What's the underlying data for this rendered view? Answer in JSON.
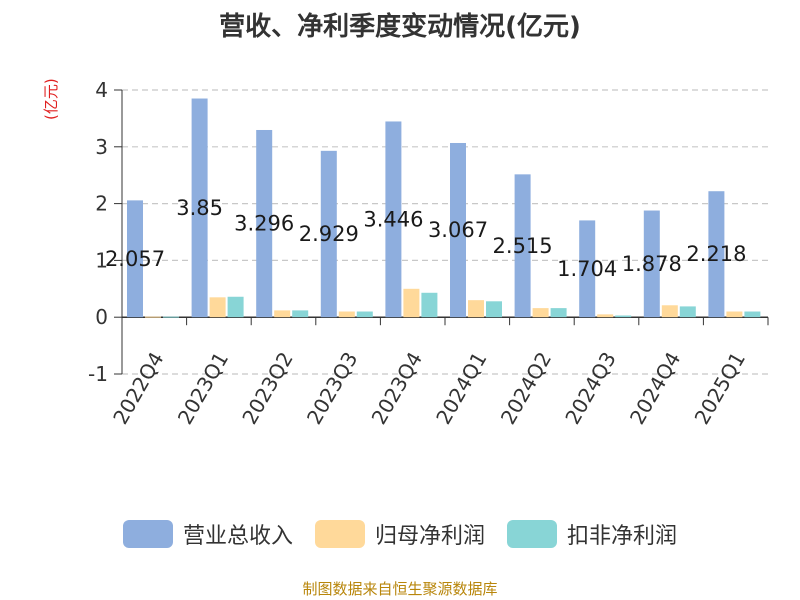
{
  "title": "营收、净利季度变动情况(亿元)",
  "unit_label": "(亿元)",
  "source": "制图数据来自恒生聚源数据库",
  "colors": {
    "revenue": "#8eaede",
    "net_profit": "#ffd99a",
    "deducted_profit": "#88d5d6",
    "grid": "#c8c8c8",
    "axis": "#333333",
    "unit": "#e02020",
    "source": "#b8860b"
  },
  "chart_data": {
    "type": "bar",
    "title": "营收、净利季度变动情况(亿元)",
    "ylabel": "(亿元)",
    "xlabel": "",
    "ylim": [
      -1,
      4
    ],
    "yticks": [
      -1,
      0,
      1,
      2,
      3,
      4
    ],
    "grid": true,
    "legend": "bottom",
    "categories": [
      "2022Q4",
      "2023Q1",
      "2023Q2",
      "2023Q3",
      "2023Q4",
      "2024Q1",
      "2024Q2",
      "2024Q3",
      "2024Q4",
      "2025Q1"
    ],
    "series": [
      {
        "name": "营业总收入",
        "values": [
          2.057,
          3.85,
          3.296,
          2.929,
          3.446,
          3.067,
          2.515,
          1.704,
          1.878,
          2.218
        ]
      },
      {
        "name": "归母净利润",
        "values": [
          0.01,
          0.35,
          0.12,
          0.1,
          0.5,
          0.3,
          0.16,
          0.05,
          0.21,
          0.1
        ]
      },
      {
        "name": "扣非净利润",
        "values": [
          0.01,
          0.36,
          0.12,
          0.1,
          0.43,
          0.28,
          0.16,
          0.03,
          0.19,
          0.1
        ]
      }
    ],
    "data_labels": [
      "2.057",
      "3.85",
      "3.296",
      "2.929",
      "3.446",
      "3.067",
      "2.515",
      "1.704",
      "1.878",
      "2.218"
    ]
  }
}
